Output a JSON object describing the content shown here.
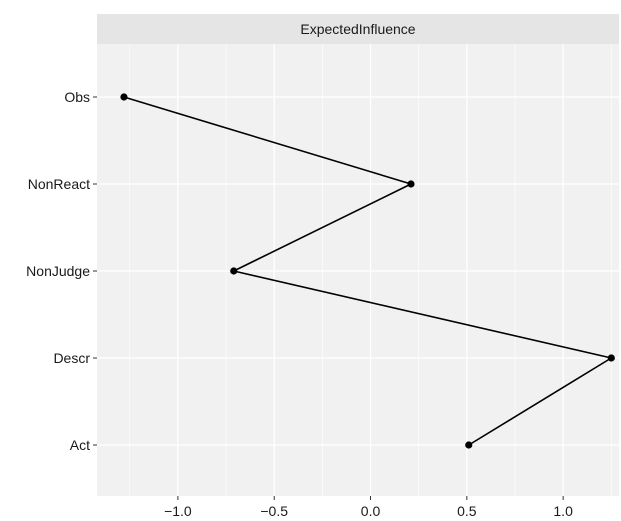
{
  "chart_data": {
    "type": "line",
    "facet_label": "ExpectedInfluence",
    "categories": [
      "Obs",
      "NonReact",
      "NonJudge",
      "Descr",
      "Act"
    ],
    "values": [
      -1.28,
      0.21,
      -0.71,
      1.25,
      0.51
    ],
    "xlim": [
      -1.42,
      1.29
    ],
    "x_ticks": [
      -1.0,
      -0.5,
      0.0,
      0.5,
      1.0
    ],
    "x_tick_labels": [
      "−1.0",
      "−0.5",
      "0.0",
      "0.5",
      "1.0"
    ],
    "xlabel": "",
    "ylabel": "",
    "grid": true,
    "colors": {
      "panel_bg": "#f0f1f0",
      "strip_bg": "#e5e5e5",
      "grid_major": "#ffffff",
      "line": "#000000"
    }
  }
}
